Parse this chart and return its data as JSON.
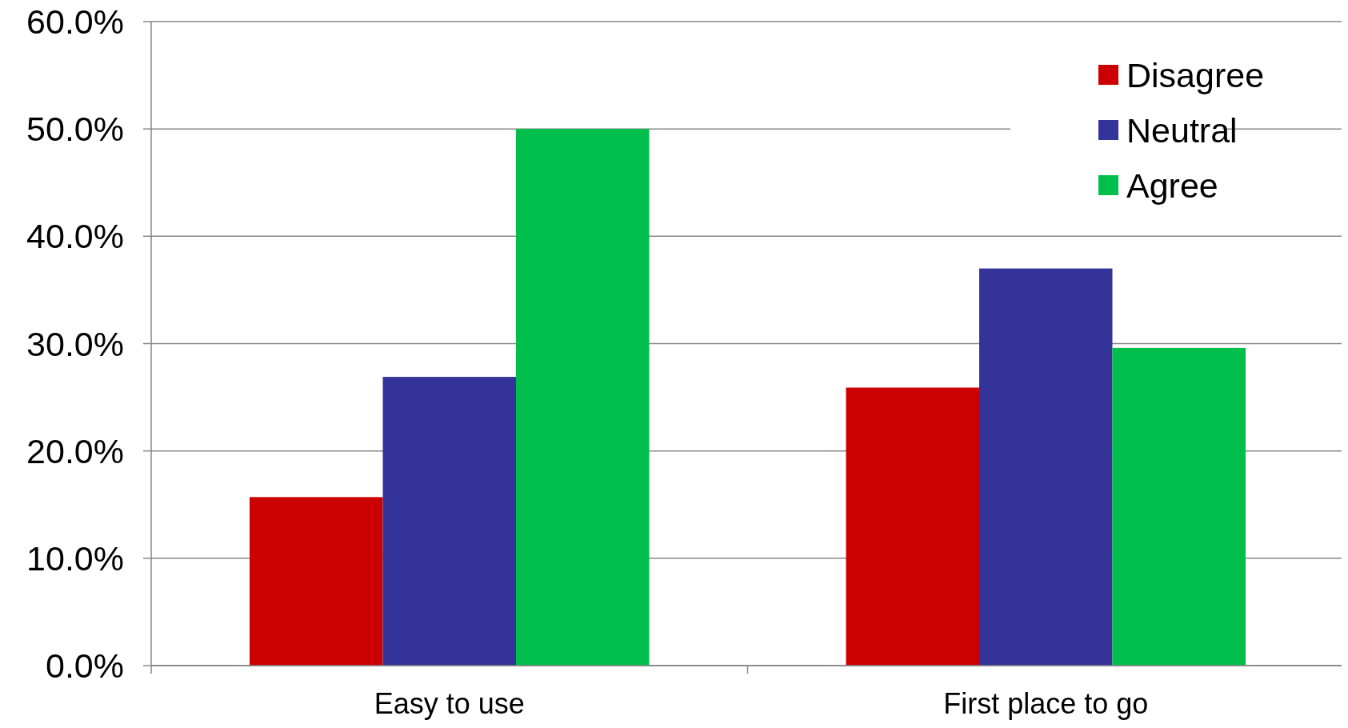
{
  "chart_data": {
    "type": "bar",
    "categories": [
      "Easy to use",
      "First place to go"
    ],
    "series": [
      {
        "name": "Disagree",
        "color": "#cc0000",
        "values": [
          15.7,
          25.9
        ]
      },
      {
        "name": "Neutral",
        "color": "#333399",
        "values": [
          26.9,
          37.0
        ]
      },
      {
        "name": "Agree",
        "color": "#00bf4c",
        "values": [
          50.0,
          29.6
        ]
      }
    ],
    "ylim": [
      0,
      60
    ],
    "yticks": [
      {
        "value": 0,
        "label": "0.0%"
      },
      {
        "value": 10,
        "label": "10.0%"
      },
      {
        "value": 20,
        "label": "20.0%"
      },
      {
        "value": 30,
        "label": "30.0%"
      },
      {
        "value": 40,
        "label": "40.0%"
      },
      {
        "value": 50,
        "label": "50.0%"
      },
      {
        "value": 60,
        "label": "60.0%"
      }
    ],
    "grid": "y",
    "legend": "top right"
  }
}
